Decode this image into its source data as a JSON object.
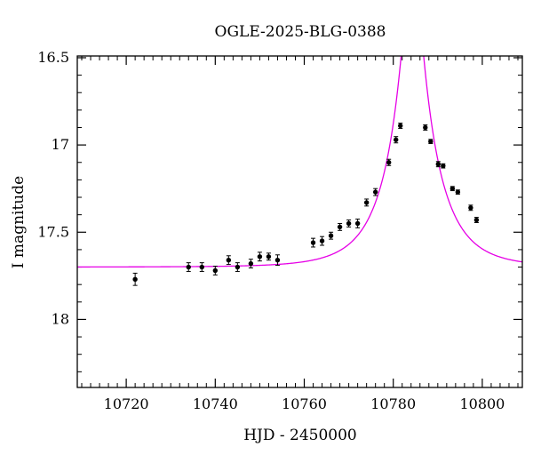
{
  "chart_data": {
    "type": "scatter",
    "title": "OGLE-2025-BLG-0388",
    "xlabel": "HJD - 2450000",
    "ylabel": "I magnitude",
    "xlim": [
      10709,
      10809
    ],
    "ylim": [
      18.39,
      16.49
    ],
    "y_inverted": true,
    "grid": false,
    "x_ticks": [
      10720,
      10740,
      10760,
      10780,
      10800
    ],
    "x_tick_labels": [
      "10720",
      "10740",
      "10760",
      "10780",
      "10800"
    ],
    "y_ticks": [
      16.5,
      17,
      17.5,
      18
    ],
    "y_tick_labels": [
      "16.5",
      "17",
      "17.5",
      "18"
    ],
    "x_minor_step": 2,
    "y_minor_step": 0.1,
    "colors": {
      "points": "#000000",
      "model": "#e600e6"
    },
    "series": [
      {
        "kind": "points",
        "x": [
          10722.0,
          10734.0,
          10737.0,
          10740.0,
          10743.0,
          10745.0,
          10748.0,
          10750.0,
          10752.0,
          10754.0,
          10762.0,
          10764.0,
          10766.0,
          10768.0,
          10770.0,
          10772.0,
          10774.0,
          10776.0,
          10779.0,
          10780.6,
          10781.6,
          10787.2,
          10788.4,
          10790.1,
          10791.2,
          10793.3,
          10794.5,
          10797.4,
          10798.7
        ],
        "y": [
          17.77,
          17.7,
          17.7,
          17.72,
          17.66,
          17.7,
          17.68,
          17.64,
          17.64,
          17.66,
          17.56,
          17.55,
          17.52,
          17.47,
          17.45,
          17.45,
          17.33,
          17.27,
          17.1,
          16.97,
          16.89,
          16.9,
          16.98,
          17.11,
          17.12,
          17.25,
          17.27,
          17.36,
          17.43
        ],
        "err": [
          0.035,
          0.025,
          0.025,
          0.025,
          0.025,
          0.025,
          0.025,
          0.025,
          0.02,
          0.03,
          0.025,
          0.025,
          0.02,
          0.02,
          0.02,
          0.025,
          0.02,
          0.02,
          0.018,
          0.018,
          0.015,
          0.015,
          0.012,
          0.015,
          0.012,
          0.012,
          0.012,
          0.015,
          0.015
        ]
      },
      {
        "kind": "model",
        "params": {
          "t0": 10784.3,
          "u0": 0.16,
          "tE": 10.2,
          "base_mag": 17.7,
          "blend_flux_fraction": 0.18
        }
      }
    ]
  }
}
